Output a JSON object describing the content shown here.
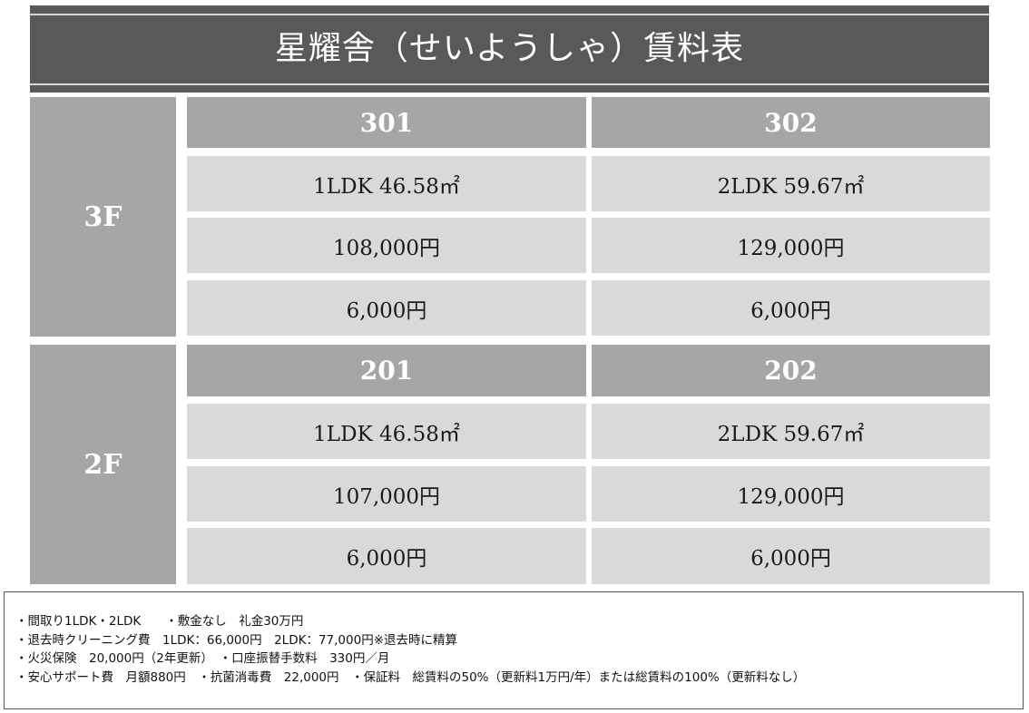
{
  "title": "星耀舎（せいようしゃ）賃料表",
  "floors": [
    {
      "label": "3F",
      "units": [
        {
          "number": "301",
          "layout": "1LDK  46.58㎡",
          "rent": "108,000円",
          "fee": "6,000円"
        },
        {
          "number": "302",
          "layout": "2LDK  59.67㎡",
          "rent": "129,000円",
          "fee": "6,000円"
        }
      ]
    },
    {
      "label": "2F",
      "units": [
        {
          "number": "201",
          "layout": "1LDK  46.58㎡",
          "rent": "107,000円",
          "fee": "6,000円"
        },
        {
          "number": "202",
          "layout": "2LDK  59.67㎡",
          "rent": "129,000円",
          "fee": "6,000円"
        }
      ]
    }
  ],
  "notes": [
    "・間取り1LDK・2LDK　　・敷金なし　礼金30万円",
    "・退去時クリーニング費　1LDK：66,000円　2LDK：77,000円※退去時に精算",
    "・火災保険　20,000円（2年更新）　・口座振替手数料　330円／月",
    "・安心サポート費　月額880円　・抗菌消毒費　22,000円　・保証料　総賃料の50%（更新料1万円/年）または総賃料の100%（更新料なし）"
  ],
  "colors": {
    "title_bg": "#595959",
    "header_bg": "#a6a6a6",
    "cell_bg": "#d9d9d9"
  }
}
